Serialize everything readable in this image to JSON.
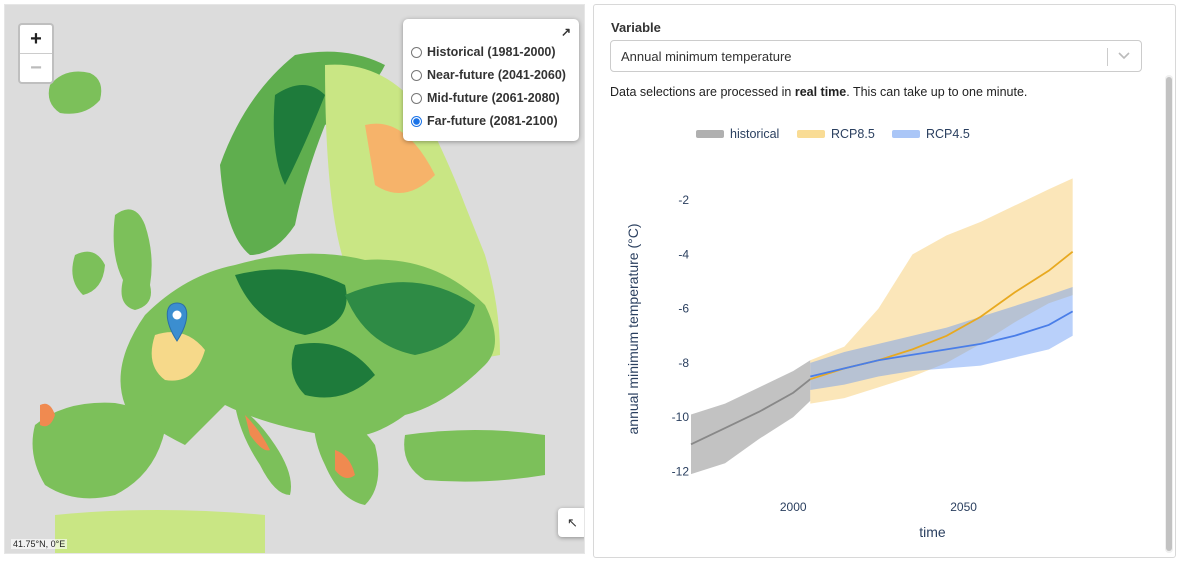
{
  "map": {
    "zoom_in": "+",
    "zoom_out": "−",
    "expand_icon": "↗",
    "collapse_icon": "↖",
    "coords": "41.75°N, 0°E",
    "periods": [
      {
        "label": "Historical (1981-2000)",
        "selected": false
      },
      {
        "label": "Near-future (2041-2060)",
        "selected": false
      },
      {
        "label": "Mid-future (2061-2080)",
        "selected": false
      },
      {
        "label": "Far-future (2081-2100)",
        "selected": true
      }
    ],
    "marker_icon": "map-pin-icon",
    "colors": {
      "sea": "#dcdcdc",
      "land": "#7cc05a",
      "dark_green": "#1e7b3b",
      "light_green": "#c9e684",
      "orange": "#f6b36a",
      "marker": "#3b8ed0"
    }
  },
  "panel": {
    "variable_label": "Variable",
    "select_value": "Annual minimum temperature",
    "note_pre": "Data selections are processed in ",
    "note_bold": "real time",
    "note_post": ". This can take up to one minute."
  },
  "chart_data": {
    "type": "line",
    "xlabel": "time",
    "ylabel": "annual minimum temperature (°C)",
    "xlim": [
      1970,
      2100
    ],
    "ylim": [
      -12.5,
      -1
    ],
    "xticks": [
      2000,
      2050
    ],
    "yticks": [
      -2,
      -4,
      -6,
      -8,
      -10,
      -12
    ],
    "series": [
      {
        "name": "historical",
        "color": "#888888",
        "band_color": "rgba(120,120,120,0.45)",
        "x": [
          1970,
          1980,
          1990,
          2000,
          2005
        ],
        "values": [
          -11.0,
          -10.4,
          -9.8,
          -9.1,
          -8.6
        ],
        "lower": [
          -12.1,
          -11.7,
          -10.8,
          -10.0,
          -9.4
        ],
        "upper": [
          -9.9,
          -9.5,
          -8.9,
          -8.3,
          -7.9
        ]
      },
      {
        "name": "RCP8.5",
        "color": "#e8a920",
        "band_color": "rgba(246,200,100,0.45)",
        "x": [
          2005,
          2015,
          2025,
          2035,
          2045,
          2055,
          2065,
          2075,
          2082
        ],
        "values": [
          -8.6,
          -8.2,
          -7.9,
          -7.5,
          -7.0,
          -6.3,
          -5.4,
          -4.6,
          -3.9
        ],
        "lower": [
          -9.5,
          -9.3,
          -8.9,
          -8.5,
          -8.0,
          -7.3,
          -6.5,
          -5.8,
          -5.5
        ],
        "upper": [
          -7.9,
          -7.4,
          -6.0,
          -4.0,
          -3.3,
          -2.8,
          -2.2,
          -1.6,
          -1.2
        ]
      },
      {
        "name": "RCP4.5",
        "color": "#4a7ee8",
        "band_color": "rgba(100,150,245,0.45)",
        "x": [
          2005,
          2015,
          2025,
          2035,
          2045,
          2055,
          2065,
          2075,
          2082
        ],
        "values": [
          -8.5,
          -8.2,
          -7.9,
          -7.7,
          -7.5,
          -7.3,
          -7.0,
          -6.6,
          -6.1
        ],
        "lower": [
          -9.0,
          -8.8,
          -8.5,
          -8.3,
          -8.2,
          -8.1,
          -7.8,
          -7.5,
          -7.0
        ],
        "upper": [
          -8.0,
          -7.6,
          -7.3,
          -7.0,
          -6.7,
          -6.3,
          -5.9,
          -5.5,
          -5.2
        ]
      }
    ]
  }
}
